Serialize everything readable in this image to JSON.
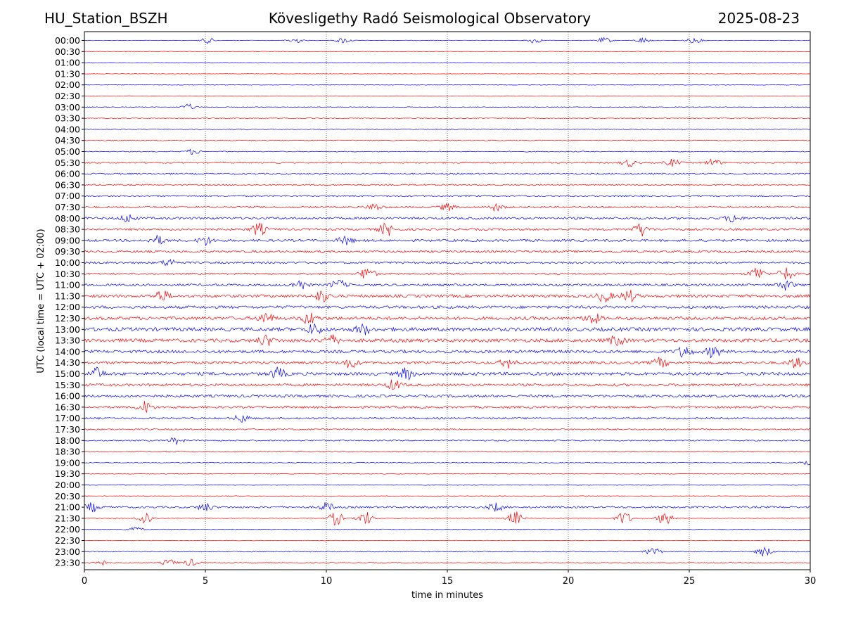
{
  "header": {
    "station": "HU_Station_BSZH",
    "observatory": "Kövesligethy Radó Seismological Observatory",
    "date": "2025-08-23"
  },
  "chart_data": {
    "type": "line",
    "title": "Kövesligethy Radó Seismological Observatory",
    "xlabel": "time in minutes",
    "ylabel": "UTC (local time = UTC + 02:00)",
    "xlim": [
      0,
      30
    ],
    "x_ticks": [
      0,
      5,
      10,
      15,
      20,
      25,
      30
    ],
    "grid": "vertical dotted lines at 5-minute intervals",
    "row_labels": [
      "00:00",
      "00:30",
      "01:00",
      "01:30",
      "02:00",
      "02:30",
      "03:00",
      "03:30",
      "04:00",
      "04:30",
      "05:00",
      "05:30",
      "06:00",
      "06:30",
      "07:00",
      "07:30",
      "08:00",
      "08:30",
      "09:00",
      "09:30",
      "10:00",
      "10:30",
      "11:00",
      "11:30",
      "12:00",
      "12:30",
      "13:00",
      "13:30",
      "14:00",
      "14:30",
      "15:00",
      "15:30",
      "16:00",
      "16:30",
      "17:00",
      "17:30",
      "18:00",
      "18:30",
      "19:00",
      "19:30",
      "20:00",
      "20:30",
      "21:00",
      "21:30",
      "22:00",
      "22:30",
      "23:00",
      "23:30"
    ],
    "colors": [
      "#0000ff",
      "#ff0000"
    ],
    "noise_level": [
      0.4,
      0.4,
      0.3,
      0.3,
      0.4,
      0.4,
      0.5,
      0.5,
      0.6,
      0.6,
      0.6,
      1.0,
      1.1,
      1.0,
      1.2,
      1.3,
      1.6,
      1.5,
      1.7,
      1.5,
      1.5,
      1.2,
      1.6,
      2.0,
      2.0,
      2.2,
      2.6,
      2.4,
      2.1,
      1.8,
      2.2,
      1.8,
      1.8,
      1.6,
      1.3,
      1.0,
      0.9,
      0.7,
      0.5,
      0.5,
      0.6,
      0.4,
      1.3,
      0.5,
      0.5,
      0.4,
      0.6,
      0.5
    ],
    "events": [
      {
        "row": 0,
        "minutes": [
          5.1,
          8.7,
          10.7,
          18.6,
          21.5,
          23.1,
          25.2
        ],
        "amplitude": 4
      },
      {
        "row": 6,
        "minutes": [
          4.3
        ],
        "amplitude": 4
      },
      {
        "row": 10,
        "minutes": [
          4.5
        ],
        "amplitude": 4
      },
      {
        "row": 11,
        "minutes": [
          22.5,
          24.3,
          26.0
        ],
        "amplitude": 5
      },
      {
        "row": 15,
        "minutes": [
          12.0,
          15.0,
          17.0
        ],
        "amplitude": 5
      },
      {
        "row": 16,
        "minutes": [
          1.8,
          26.8
        ],
        "amplitude": 6
      },
      {
        "row": 17,
        "minutes": [
          7.2,
          12.5,
          23.0
        ],
        "amplitude": 9
      },
      {
        "row": 18,
        "minutes": [
          3.0,
          5.0,
          10.8
        ],
        "amplitude": 6
      },
      {
        "row": 20,
        "minutes": [
          3.5
        ],
        "amplitude": 5
      },
      {
        "row": 21,
        "minutes": [
          11.7,
          27.8,
          29.0
        ],
        "amplitude": 10
      },
      {
        "row": 22,
        "minutes": [
          8.9,
          10.5,
          29.0
        ],
        "amplitude": 7
      },
      {
        "row": 23,
        "minutes": [
          3.2,
          9.8,
          21.5,
          22.5
        ],
        "amplitude": 8
      },
      {
        "row": 25,
        "minutes": [
          7.5,
          9.3,
          21.0
        ],
        "amplitude": 8
      },
      {
        "row": 26,
        "minutes": [
          9.5,
          11.5
        ],
        "amplitude": 7
      },
      {
        "row": 27,
        "minutes": [
          7.5,
          10.2,
          22.0
        ],
        "amplitude": 7
      },
      {
        "row": 28,
        "minutes": [
          24.8,
          26.0
        ],
        "amplitude": 8
      },
      {
        "row": 29,
        "minutes": [
          11.0,
          17.5,
          23.8,
          29.4
        ],
        "amplitude": 7
      },
      {
        "row": 30,
        "minutes": [
          0.5,
          8.0,
          13.3
        ],
        "amplitude": 8
      },
      {
        "row": 31,
        "minutes": [
          12.8
        ],
        "amplitude": 7
      },
      {
        "row": 33,
        "minutes": [
          2.5
        ],
        "amplitude": 8
      },
      {
        "row": 34,
        "minutes": [
          6.5
        ],
        "amplitude": 6
      },
      {
        "row": 36,
        "minutes": [
          3.8
        ],
        "amplitude": 5
      },
      {
        "row": 38,
        "minutes": [
          29.8
        ],
        "amplitude": 4
      },
      {
        "row": 42,
        "minutes": [
          0.3,
          5.0,
          10.0,
          17.0
        ],
        "amplitude": 6
      },
      {
        "row": 43,
        "minutes": [
          2.5,
          10.4,
          11.6,
          17.8,
          22.3,
          24.0
        ],
        "amplitude": 10
      },
      {
        "row": 44,
        "minutes": [
          2.1
        ],
        "amplitude": 4
      },
      {
        "row": 46,
        "minutes": [
          23.5,
          28.1
        ],
        "amplitude": 7
      },
      {
        "row": 47,
        "minutes": [
          0.6,
          3.5,
          4.4
        ],
        "amplitude": 5
      }
    ]
  }
}
